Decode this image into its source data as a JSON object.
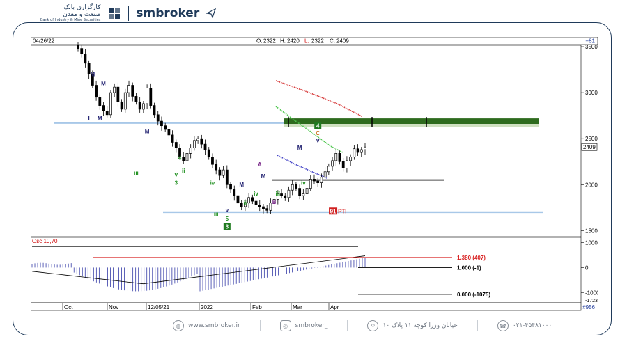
{
  "header": {
    "logo_text_line1": "کارگزاری بانک",
    "logo_text_line2": "صنعت و معدن",
    "logo_text_line3": "Bank of Industry & Mine Securities",
    "brand_name": "smbroker"
  },
  "footer": {
    "website": "www.smbroker.ir",
    "instagram": "smbroker_",
    "address": "خیابان وزرا کوچه ۱۱ پلاک ۱۰",
    "phone": "۰۲۱-۴۵۴۸۱۰۰۰"
  },
  "colors": {
    "frame": "#1f3a5a",
    "candle_up": "#ffffff",
    "candle_down": "#000000",
    "support_line": "#a8c8e8",
    "mid_line": "#808080",
    "resistance_zone": "#2e6b1e",
    "ma_red": "#d84040",
    "ma_green": "#50c850",
    "ma_blue": "#4848c8",
    "osc_bars": "#4a50b0",
    "label_red": "#d82020",
    "wave_green": "#209020",
    "wave_navy": "#202070"
  },
  "chart_data": {
    "type": "candlestick",
    "date_label": "04/26/22",
    "ohlc": {
      "o_label": "O:",
      "o": "2322",
      "h_label": "H:",
      "h": "2420",
      "l_label": "L:",
      "l": "2322",
      "c_label": "C:",
      "c": "2409"
    },
    "change": "+81",
    "y_ticks": [
      "3500",
      "3000",
      "2500",
      "2000",
      "1500"
    ],
    "ylim": [
      1450,
      3500
    ],
    "last_price_tag": "2409",
    "x_ticks": [
      "Oct",
      "Nov",
      "12/05/21",
      "2022",
      "Feb",
      "Mar",
      "Apr"
    ],
    "bar_count": "#956",
    "closes": [
      3480,
      3420,
      3320,
      3200,
      3080,
      2950,
      2860,
      2800,
      2760,
      3000,
      3060,
      2900,
      2820,
      3000,
      3080,
      2960,
      2900,
      2820,
      2880,
      3050,
      2860,
      2760,
      2690,
      2640,
      2600,
      2540,
      2460,
      2400,
      2300,
      2260,
      2340,
      2400,
      2480,
      2500,
      2440,
      2380,
      2300,
      2220,
      2160,
      2100,
      2160,
      2000,
      1950,
      1880,
      1800,
      1760,
      1800,
      1860,
      1820,
      1780,
      1760,
      1740,
      1720,
      1800,
      1840,
      1900,
      1880,
      1860,
      1940,
      2000,
      1960,
      1880,
      1900,
      1960,
      2060,
      2040,
      2020,
      2080,
      2140,
      2200,
      2260,
      2340,
      2250,
      2180,
      2260,
      2300,
      2390,
      2350,
      2380,
      2409
    ],
    "horizontal_lines": [
      {
        "name": "upper-support",
        "price": 2670
      },
      {
        "name": "middle-line",
        "price": 2050
      },
      {
        "name": "lower-support",
        "price": 1700
      }
    ],
    "resistance_zone": {
      "top": 2720,
      "bottom": 2660
    },
    "wave_labels": [
      {
        "text": "M",
        "idx": 4,
        "price": 3180,
        "color": "navy"
      },
      {
        "text": "M",
        "idx": 7,
        "price": 3080,
        "color": "navy"
      },
      {
        "text": "I",
        "idx": 3,
        "price": 2700,
        "color": "navy"
      },
      {
        "text": "M",
        "idx": 6,
        "price": 2700,
        "color": "navy"
      },
      {
        "text": "M",
        "idx": 19,
        "price": 2560,
        "color": "navy"
      },
      {
        "text": "iii",
        "idx": 16,
        "price": 2110,
        "color": "green"
      },
      {
        "text": "4",
        "idx": 28,
        "price": 2270,
        "color": "green"
      },
      {
        "text": "v",
        "idx": 27,
        "price": 2090,
        "color": "green"
      },
      {
        "text": "3",
        "idx": 27,
        "price": 2000,
        "color": "green"
      },
      {
        "text": "ii",
        "idx": 29,
        "price": 2130,
        "color": "green"
      },
      {
        "text": "iv",
        "idx": 37,
        "price": 2000,
        "color": "green"
      },
      {
        "text": "iii",
        "idx": 38,
        "price": 1660,
        "color": "green"
      },
      {
        "text": "v",
        "idx": 41,
        "price": 1700,
        "color": "navy"
      },
      {
        "text": "5",
        "idx": 41,
        "price": 1610,
        "color": "green"
      },
      {
        "text": "M",
        "idx": 45,
        "price": 1980,
        "color": "navy"
      },
      {
        "text": "ii",
        "idx": 46,
        "price": 1780,
        "color": "green"
      },
      {
        "text": "iv",
        "idx": 49,
        "price": 1880,
        "color": "green"
      },
      {
        "text": "A",
        "idx": 50,
        "price": 2200,
        "color": "purple"
      },
      {
        "text": "M",
        "idx": 51,
        "price": 2070,
        "color": "navy"
      },
      {
        "text": "B",
        "idx": 54,
        "price": 1790,
        "color": "purple"
      },
      {
        "text": "iii",
        "idx": 55,
        "price": 1880,
        "color": "green"
      },
      {
        "text": "M",
        "idx": 61,
        "price": 2380,
        "color": "navy"
      },
      {
        "text": "iv",
        "idx": 62,
        "price": 2000,
        "color": "green"
      },
      {
        "text": "v",
        "idx": 66,
        "price": 2460,
        "color": "navy"
      },
      {
        "text": "C",
        "idx": 66,
        "price": 2540,
        "color": "orange"
      }
    ],
    "boxed_labels": [
      {
        "text": "3",
        "idx": 41,
        "price": 1520,
        "bg": "#1f7a1f"
      },
      {
        "text": "4",
        "idx": 66,
        "price": 2620,
        "bg": "#1f7a1f"
      },
      {
        "text": "91",
        "idx": 70,
        "price": 1690,
        "bg": "#d02020"
      }
    ],
    "pti_label": "PTI",
    "oscillator": {
      "title": "Osc 10,70",
      "y_ticks": [
        "1000",
        "0",
        "-1000"
      ],
      "ylim": [
        -1300,
        1100
      ],
      "levels": [
        {
          "label": "1.380 (407)",
          "value": 407,
          "color": "red"
        },
        {
          "label": "1.000 (-1)",
          "value": -1,
          "color": "black"
        },
        {
          "label": "0.000 (-1075)",
          "value": -1075,
          "color": "black"
        }
      ],
      "bottom_tick": "-1723"
    }
  }
}
